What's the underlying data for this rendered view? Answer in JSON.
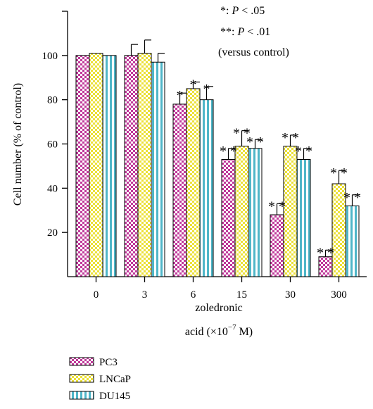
{
  "chart_data": {
    "type": "bar",
    "categories": [
      "0",
      "3",
      "6",
      "15",
      "30",
      "300"
    ],
    "series": [
      {
        "name": "PC3",
        "values": [
          100,
          100,
          78,
          53,
          28,
          9
        ],
        "errors": [
          0,
          5,
          5,
          5,
          5,
          3
        ],
        "significance": [
          "",
          "",
          "*",
          "**",
          "**",
          "**"
        ],
        "color": "#c0399a",
        "pattern": "checker"
      },
      {
        "name": "LNCaP",
        "values": [
          101,
          101,
          85,
          59,
          59,
          42
        ],
        "errors": [
          0,
          6,
          3,
          7,
          5,
          6
        ],
        "significance": [
          "",
          "",
          "*",
          "**",
          "**",
          "**"
        ],
        "color": "#ece13a",
        "pattern": "checker"
      },
      {
        "name": "DU145",
        "values": [
          100,
          97,
          80,
          58,
          53,
          32
        ],
        "errors": [
          0,
          4,
          6,
          4,
          5,
          5
        ],
        "significance": [
          "",
          "",
          "*",
          "**",
          "**",
          "**"
        ],
        "color": "#4fb6c8",
        "pattern": "vstripe"
      }
    ],
    "y_ticks": [
      "20",
      "40",
      "60",
      "80",
      "100"
    ],
    "ylim": [
      0,
      120
    ],
    "ylabel": "Cell number (% of control)",
    "xlabel_line1": "zoledronic",
    "xlabel_line2_prefix": "acid (×10",
    "xlabel_exponent": "−7",
    "xlabel_line2_suffix": " M)",
    "annotations": [
      {
        "stars": "*",
        "sep": ": ",
        "p": "P",
        "rel": " < .05"
      },
      {
        "stars": "**",
        "sep": ": ",
        "p": "P",
        "rel": " < .01"
      },
      {
        "text": "(versus control)"
      }
    ],
    "legend_position": "bottom-left",
    "grid": false
  }
}
